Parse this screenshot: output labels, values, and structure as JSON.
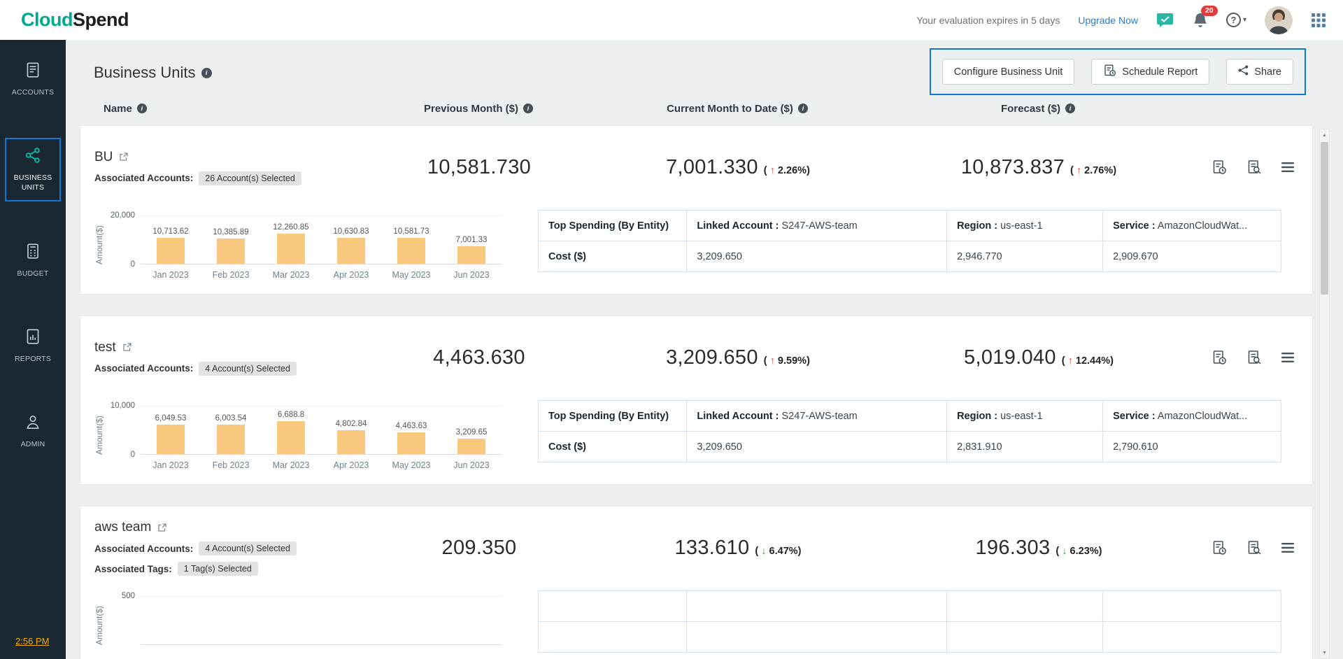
{
  "topbar": {
    "logo_part1": "Cloud",
    "logo_part2": "Spend",
    "evaluation_text": "Your evaluation expires in 5 days",
    "upgrade_label": "Upgrade Now",
    "notification_count": "20"
  },
  "sidebar": {
    "items": [
      {
        "label": "ACCOUNTS"
      },
      {
        "label": "BUSINESS UNITS"
      },
      {
        "label": "BUDGET"
      },
      {
        "label": "REPORTS"
      },
      {
        "label": "ADMIN"
      }
    ],
    "time": "2:56 PM"
  },
  "page": {
    "title": "Business Units",
    "actions": {
      "configure_label": "Configure Business Unit",
      "schedule_label": "Schedule Report",
      "share_label": "Share"
    },
    "columns": [
      {
        "label": "Name"
      },
      {
        "label": "Previous Month ($)"
      },
      {
        "label": "Current Month to Date ($)"
      },
      {
        "label": "Forecast ($)"
      }
    ]
  },
  "colors": {
    "accent_teal": "#00a88f",
    "highlight_border": "#1277d6",
    "bar_fill": "#f9c87f",
    "up_trend": "#df4b38",
    "down_trend": "#3f9f44"
  },
  "icons": [
    "chat-icon",
    "bell-icon",
    "help-icon",
    "apps-grid-icon",
    "info-icon",
    "external-link-icon",
    "schedule-report-icon",
    "view-report-icon",
    "menu-icon",
    "share-icon"
  ],
  "business_units": [
    {
      "name": "BU",
      "accounts_label": "Associated Accounts:",
      "accounts_badge": "26 Account(s) Selected",
      "tags_label": "",
      "tags_badge": "",
      "previous_month": "10,581.730",
      "current_month": "7,001.330",
      "current_trend": "up",
      "current_change": "2.26%",
      "forecast": "10,873.837",
      "forecast_trend": "up",
      "forecast_change": "2.76%",
      "chart": {
        "type": "bar",
        "ylabel": "Amount($)",
        "ymax": 20000,
        "ymax_label": "20,000",
        "ymin_label": "0",
        "categories": [
          "Jan 2023",
          "Feb 2023",
          "Mar 2023",
          "Apr 2023",
          "May 2023",
          "Jun 2023"
        ],
        "values": [
          10713.62,
          10385.89,
          12260.85,
          10630.83,
          10581.73,
          7001.33
        ],
        "value_labels": [
          "10,713.62",
          "10,385.89",
          "12,260.85",
          "10,630.83",
          "10,581.73",
          "7,001.33"
        ]
      },
      "table": {
        "headers": [
          {
            "label": "Top Spending (By Entity)",
            "value": ""
          },
          {
            "label": "Linked Account :",
            "value": "S247-AWS-team"
          },
          {
            "label": "Region :",
            "value": "us-east-1"
          },
          {
            "label": "Service :",
            "value": "AmazonCloudWat..."
          }
        ],
        "row_label": "Cost ($)",
        "values": [
          "3,209.650",
          "2,946.770",
          "2,909.670"
        ]
      }
    },
    {
      "name": "test",
      "accounts_label": "Associated Accounts:",
      "accounts_badge": "4 Account(s) Selected",
      "tags_label": "",
      "tags_badge": "",
      "previous_month": "4,463.630",
      "current_month": "3,209.650",
      "current_trend": "up",
      "current_change": "9.59%",
      "forecast": "5,019.040",
      "forecast_trend": "up",
      "forecast_change": "12.44%",
      "chart": {
        "type": "bar",
        "ylabel": "Amount($)",
        "ymax": 10000,
        "ymax_label": "10,000",
        "ymin_label": "0",
        "categories": [
          "Jan 2023",
          "Feb 2023",
          "Mar 2023",
          "Apr 2023",
          "May 2023",
          "Jun 2023"
        ],
        "values": [
          6049.53,
          6003.54,
          6688.8,
          4802.84,
          4463.63,
          3209.65
        ],
        "value_labels": [
          "6,049.53",
          "6,003.54",
          "6,688.8",
          "4,802.84",
          "4,463.63",
          "3,209.65"
        ]
      },
      "table": {
        "headers": [
          {
            "label": "Top Spending (By Entity)",
            "value": ""
          },
          {
            "label": "Linked Account :",
            "value": "S247-AWS-team"
          },
          {
            "label": "Region :",
            "value": "us-east-1"
          },
          {
            "label": "Service :",
            "value": "AmazonCloudWat..."
          }
        ],
        "row_label": "Cost ($)",
        "values": [
          "3,209.650",
          "2,831.910",
          "2,790.610"
        ]
      }
    },
    {
      "name": "aws team",
      "accounts_label": "Associated Accounts:",
      "accounts_badge": "4 Account(s) Selected",
      "tags_label": "Associated Tags:",
      "tags_badge": "1 Tag(s) Selected",
      "previous_month": "209.350",
      "current_month": "133.610",
      "current_trend": "down",
      "current_change": "6.47%",
      "forecast": "196.303",
      "forecast_trend": "down",
      "forecast_change": "6.23%",
      "chart": {
        "type": "bar",
        "ylabel": "Amount($)",
        "ymax": 500,
        "ymax_label": "500",
        "ymin_label": "",
        "categories": [],
        "values": [],
        "value_labels": []
      },
      "table": {
        "headers": [
          {
            "label": "",
            "value": ""
          },
          {
            "label": "",
            "value": ""
          },
          {
            "label": "",
            "value": ""
          },
          {
            "label": "",
            "value": ""
          }
        ],
        "row_label": "",
        "values": [
          "",
          "",
          ""
        ]
      }
    }
  ]
}
